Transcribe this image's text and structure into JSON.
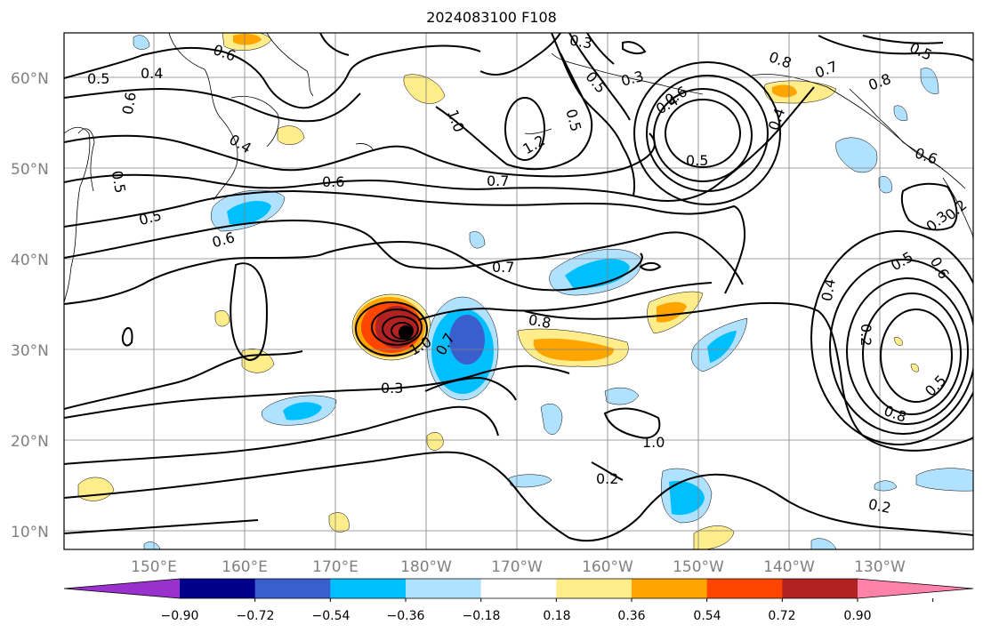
{
  "title": "2024083100 F108",
  "map": {
    "lat_labels": [
      "60°N",
      "50°N",
      "40°N",
      "30°N",
      "20°N",
      "10°N"
    ],
    "lon_labels": [
      "150°E",
      "160°E",
      "170°E",
      "180°W",
      "170°W",
      "160°W",
      "150°W",
      "140°W",
      "130°W"
    ],
    "contour_labels": [
      "0.5",
      "0.4",
      "0.6",
      "0.6",
      "0.4",
      "0.5",
      "0.5",
      "0.6",
      "0.6",
      "0.7",
      "0.7",
      "1.0",
      "1.2",
      "0.3",
      "0.5",
      "0.5",
      "0.3",
      "0.4",
      "0.6",
      "0.8",
      "0.7",
      "0.8",
      "0.5",
      "0.6",
      "0.4",
      "0.5",
      "0.8",
      "1.0",
      "0.7",
      "0.4",
      "0.3",
      "0.5",
      "0.6",
      "0.3",
      "0.2",
      "0.2",
      "0.5",
      "0.8",
      "1.0"
    ],
    "colors": {
      "contour": "#000000",
      "grid": "#808080",
      "coast": "#000000"
    }
  },
  "colorbar": {
    "ticks": [
      "−0.90",
      "−0.72",
      "−0.54",
      "−0.36",
      "−0.18",
      "0.18",
      "0.36",
      "0.54",
      "0.72",
      "0.90"
    ],
    "colors": [
      "#9932cc",
      "#00008b",
      "#3a5fcd",
      "#00bfff",
      "#b0e2ff",
      "#ffffff",
      "#ffec8b",
      "#ffa500",
      "#ff4500",
      "#b22222",
      "#ff82ab"
    ]
  }
}
